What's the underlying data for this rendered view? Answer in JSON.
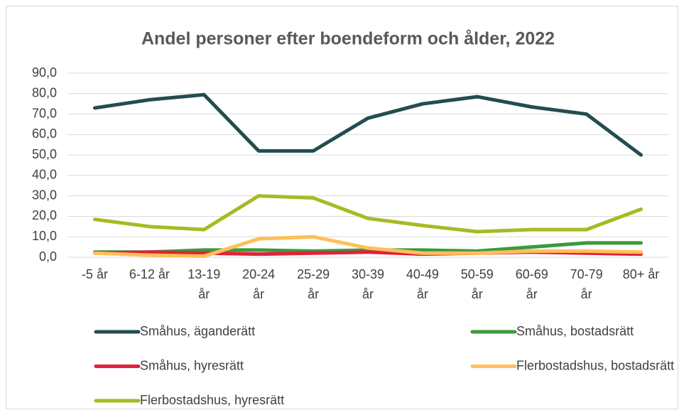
{
  "chart_data": {
    "type": "line",
    "title": "Andel personer efter boendeform och ålder, 2022",
    "categories": [
      "-5 år",
      "6-12 år",
      "13-19 år",
      "20-24 år",
      "25-29 år",
      "30-39 år",
      "40-49 år",
      "50-59 år",
      "60-69 år",
      "70-79 år",
      "80+ år"
    ],
    "series": [
      {
        "name": "Småhus, äganderätt",
        "color": "#234d4e",
        "values": [
          73,
          77,
          79.5,
          52,
          52,
          68,
          75,
          78.5,
          73.5,
          70,
          50
        ]
      },
      {
        "name": "Småhus, bostadsrätt",
        "color": "#3c9a3c",
        "values": [
          2.5,
          2.5,
          3.5,
          3.5,
          3.0,
          3.5,
          3.5,
          3.0,
          5.0,
          7.0,
          7.0
        ]
      },
      {
        "name": "Småhus, hyresrätt",
        "color": "#e0223a",
        "values": [
          2.0,
          2.5,
          2.0,
          1.5,
          2.0,
          2.5,
          1.5,
          2.0,
          2.5,
          2.0,
          1.5
        ]
      },
      {
        "name": "Flerbostadshus, bostadsrätt",
        "color": "#ffbf5a",
        "values": [
          2.0,
          1.0,
          0.5,
          9.0,
          10.0,
          4.5,
          2.0,
          2.0,
          3.0,
          3.0,
          2.5
        ]
      },
      {
        "name": "Flerbostadshus, hyresrätt",
        "color": "#a9b925",
        "values": [
          18.5,
          15.0,
          13.5,
          30.0,
          29.0,
          19.0,
          15.5,
          12.5,
          13.5,
          13.5,
          23.5
        ]
      }
    ],
    "ylim": [
      0,
      90
    ],
    "yticks": [
      {
        "value": 0,
        "label": "0,0"
      },
      {
        "value": 10,
        "label": "10,0"
      },
      {
        "value": 20,
        "label": "20,0"
      },
      {
        "value": 30,
        "label": "30,0"
      },
      {
        "value": 40,
        "label": "40,0"
      },
      {
        "value": 50,
        "label": "50,0"
      },
      {
        "value": 60,
        "label": "60,0"
      },
      {
        "value": 70,
        "label": "70,0"
      },
      {
        "value": 80,
        "label": "80,0"
      },
      {
        "value": 90,
        "label": "90,0"
      }
    ],
    "grid": true
  }
}
